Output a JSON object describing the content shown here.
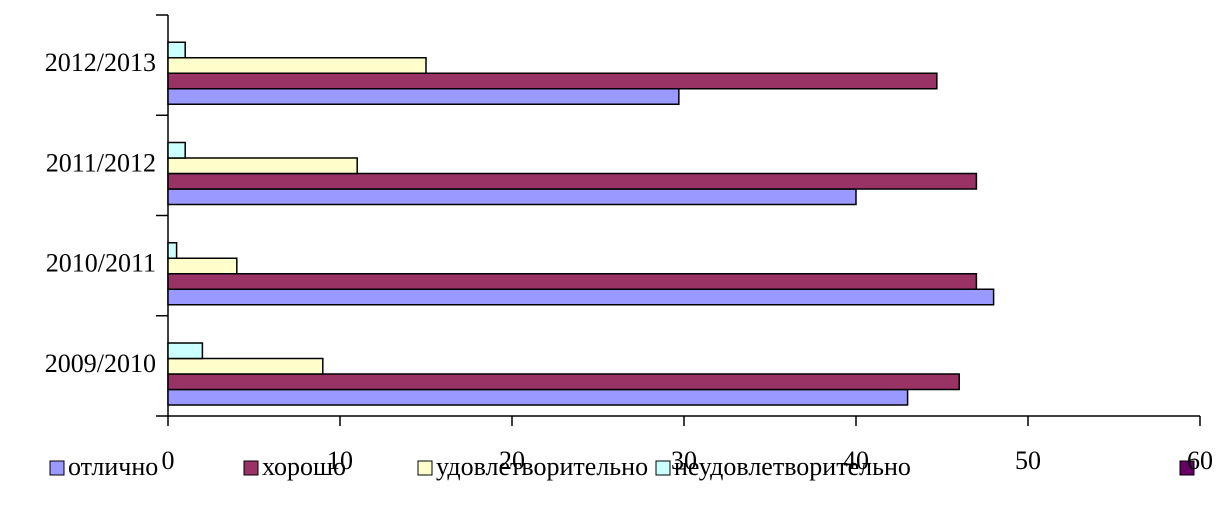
{
  "chart_data": {
    "type": "hbar",
    "categories": [
      "2009/2010",
      "2010/2011",
      "2011/2012",
      "2012/2013"
    ],
    "series": [
      {
        "name": "отлично",
        "color": "#9999ff",
        "values": [
          43,
          48,
          40,
          29.7
        ]
      },
      {
        "name": "хорошо",
        "color": "#993366",
        "values": [
          46,
          47,
          47,
          44.7
        ]
      },
      {
        "name": "удовлетворительно",
        "color": "#ffffcc",
        "values": [
          9,
          4,
          11,
          15
        ]
      },
      {
        "name": "неудовлетворительно",
        "color": "#ccffff",
        "values": [
          2,
          0.5,
          1,
          1
        ]
      }
    ],
    "xlim": [
      0,
      60
    ],
    "xticks": [
      0,
      10,
      20,
      30,
      40,
      50,
      60
    ],
    "legend": "bottom"
  }
}
